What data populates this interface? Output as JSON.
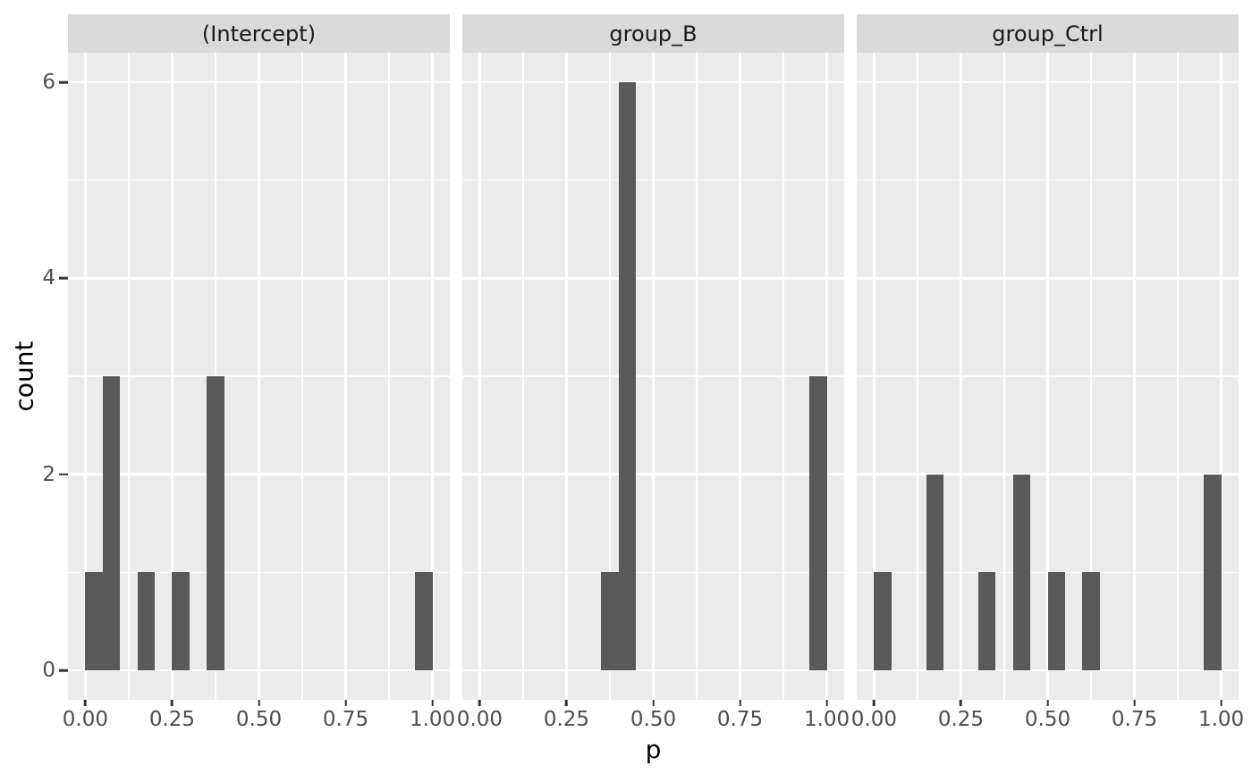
{
  "chart_data": {
    "type": "bar",
    "subtype": "faceted-histogram",
    "title": "",
    "xlabel": "p",
    "ylabel": "count",
    "binwidth": 0.05,
    "x_range": [
      -0.05,
      1.05
    ],
    "y_range": [
      -0.3,
      6.3
    ],
    "grid": true,
    "legend_position": "none",
    "x_axis": {
      "major_ticks": [
        0.0,
        0.25,
        0.5,
        0.75,
        1.0
      ],
      "tick_labels": [
        "0.00",
        "0.25",
        "0.50",
        "0.75",
        "1.00"
      ],
      "minor_ticks": [
        0.125,
        0.375,
        0.625,
        0.875
      ]
    },
    "y_axis": {
      "major_ticks": [
        0,
        2,
        4,
        6
      ],
      "tick_labels": [
        "0",
        "2",
        "4",
        "6"
      ],
      "minor_ticks": [
        1,
        3,
        5
      ]
    },
    "facets": [
      {
        "label": "(Intercept)",
        "bins": [
          {
            "x0": 0.0,
            "x1": 0.05,
            "count": 1
          },
          {
            "x0": 0.05,
            "x1": 0.1,
            "count": 3
          },
          {
            "x0": 0.15,
            "x1": 0.2,
            "count": 1
          },
          {
            "x0": 0.25,
            "x1": 0.3,
            "count": 1
          },
          {
            "x0": 0.35,
            "x1": 0.4,
            "count": 3
          },
          {
            "x0": 0.95,
            "x1": 1.0,
            "count": 1
          }
        ]
      },
      {
        "label": "group_B",
        "bins": [
          {
            "x0": 0.35,
            "x1": 0.4,
            "count": 1
          },
          {
            "x0": 0.4,
            "x1": 0.45,
            "count": 6
          },
          {
            "x0": 0.95,
            "x1": 1.0,
            "count": 3
          }
        ]
      },
      {
        "label": "group_Ctrl",
        "bins": [
          {
            "x0": 0.0,
            "x1": 0.05,
            "count": 1
          },
          {
            "x0": 0.15,
            "x1": 0.2,
            "count": 2
          },
          {
            "x0": 0.3,
            "x1": 0.35,
            "count": 1
          },
          {
            "x0": 0.4,
            "x1": 0.45,
            "count": 2
          },
          {
            "x0": 0.5,
            "x1": 0.55,
            "count": 1
          },
          {
            "x0": 0.6,
            "x1": 0.65,
            "count": 1
          },
          {
            "x0": 0.95,
            "x1": 1.0,
            "count": 2
          }
        ]
      }
    ]
  },
  "colors": {
    "panel_bg": "#EBEBEB",
    "strip_bg": "#D9D9D9",
    "bar_fill": "#595959",
    "gridline": "#FFFFFF",
    "tick_mark": "#333333",
    "tick_label": "#4D4D4D",
    "axis_title": "#000000",
    "strip_text": "#1A1A1A",
    "plot_bg": "#FFFFFF"
  }
}
